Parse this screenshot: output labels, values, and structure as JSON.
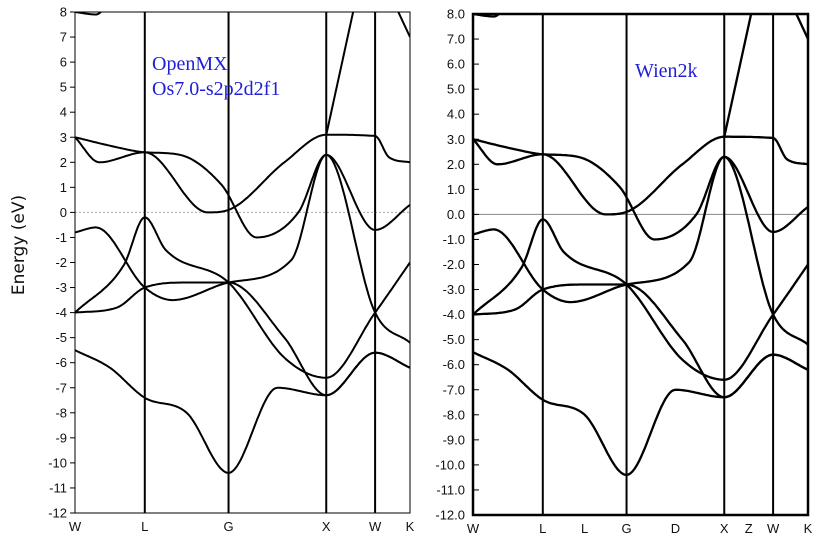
{
  "figure": {
    "ylabel": "Energy (eV)"
  },
  "chart_data": [
    {
      "type": "line",
      "title": "",
      "annotation": [
        "OpenMX",
        "Os7.0-s2p2d2f1"
      ],
      "ylabel": "Energy (eV)",
      "ylim": [
        -12,
        8
      ],
      "yticks": [
        8,
        7,
        6,
        5,
        4,
        3,
        2,
        1,
        0,
        -1,
        -2,
        -3,
        -4,
        -5,
        -6,
        -7,
        -8,
        -9,
        -10,
        -11,
        -12
      ],
      "ytick_labels": [
        "8",
        "7",
        "6",
        "5",
        "4",
        "3",
        "2",
        "1",
        "0",
        "-1",
        "-2",
        "-3",
        "-4",
        "-5",
        "-6",
        "-7",
        "-8",
        "-9",
        "-10",
        "-11",
        "-12"
      ],
      "k_labels": [
        "W",
        "L",
        "G",
        "X",
        "W",
        "K"
      ],
      "k_positions": [
        0,
        1,
        2.2,
        3.6,
        4.3,
        4.8
      ],
      "fermi_level": 0,
      "fermi_style": "dotted",
      "series": [
        {
          "points": [
            [
              0,
              3
            ],
            [
              0.35,
              2
            ],
            [
              1,
              2.4
            ],
            [
              1.9,
              0
            ],
            [
              2.2,
              0.1
            ],
            [
              3,
              2
            ],
            [
              3.6,
              3.1
            ],
            [
              4.3,
              3.05
            ],
            [
              4.5,
              2.2
            ],
            [
              4.8,
              2
            ]
          ]
        },
        {
          "points": [
            [
              0,
              3
            ],
            [
              0.6,
              2.6
            ],
            [
              1,
              2.4
            ],
            [
              1.5,
              2.3
            ],
            [
              2.1,
              1.1
            ],
            [
              2.6,
              -1
            ],
            [
              3.2,
              0
            ],
            [
              3.6,
              2.3
            ],
            [
              4.3,
              -0.7
            ],
            [
              4.8,
              0.3
            ]
          ]
        },
        {
          "points": [
            [
              0,
              -0.8
            ],
            [
              0.3,
              -0.6
            ],
            [
              1,
              -3
            ],
            [
              1.4,
              -3.5
            ],
            [
              2.2,
              -2.8
            ],
            [
              3.1,
              -1.9
            ],
            [
              3.6,
              2.3
            ],
            [
              4.3,
              -4
            ],
            [
              4.8,
              -5.2
            ]
          ]
        },
        {
          "points": [
            [
              0,
              -4
            ],
            [
              0.7,
              -2.1
            ],
            [
              1,
              -0.2
            ],
            [
              1.3,
              -1.5
            ],
            [
              2.2,
              -2.8
            ],
            [
              3,
              -5.8
            ],
            [
              3.6,
              -6.6
            ],
            [
              4.3,
              -4
            ],
            [
              4.8,
              -2
            ]
          ]
        },
        {
          "points": [
            [
              0,
              -4
            ],
            [
              0.6,
              -3.8
            ],
            [
              1,
              -3
            ],
            [
              1.6,
              -2.8
            ],
            [
              2.2,
              -2.8
            ],
            [
              3,
              -5
            ],
            [
              3.6,
              -7.3
            ],
            [
              4.3,
              -5.6
            ],
            [
              4.8,
              -6.2
            ]
          ]
        },
        {
          "points": [
            [
              0,
              -5.5
            ],
            [
              0.5,
              -6.2
            ],
            [
              1,
              -7.4
            ],
            [
              1.6,
              -8
            ],
            [
              2.2,
              -10.4
            ],
            [
              2.9,
              -7
            ],
            [
              3.6,
              -7.3
            ],
            [
              4.3,
              -5.6
            ],
            [
              4.8,
              -6.2
            ]
          ]
        },
        {
          "points": [
            [
              0,
              8
            ],
            [
              0.3,
              7.9
            ],
            [
              0.45,
              8.2
            ]
          ]
        },
        {
          "points": [
            [
              3.6,
              3.1
            ],
            [
              4.0,
              8.2
            ]
          ]
        },
        {
          "points": [
            [
              4.6,
              8.2
            ],
            [
              4.8,
              7
            ]
          ]
        }
      ]
    },
    {
      "type": "line",
      "title": "",
      "annotation": [
        "Wien2k"
      ],
      "ylim": [
        -12,
        8
      ],
      "yticks": [
        8,
        7,
        6,
        5,
        4,
        3,
        2,
        1,
        0,
        -1,
        -2,
        -3,
        -4,
        -5,
        -6,
        -7,
        -8,
        -9,
        -10,
        -11,
        -12
      ],
      "ytick_labels": [
        "8.0",
        "7.0",
        "6.0",
        "5.0",
        "4.0",
        "3.0",
        "2.0",
        "1.0",
        "0.0",
        "-1.0",
        "-2.0",
        "-3.0",
        "-4.0",
        "-5.0",
        "-6.0",
        "-7.0",
        "-8.0",
        "-9.0",
        "-10.0",
        "-11.0",
        "-12.0"
      ],
      "k_labels": [
        "W",
        "L",
        "L",
        "G",
        "D",
        "X",
        "Z",
        "W",
        "K"
      ],
      "k_positions": [
        0,
        1,
        1.6,
        2.2,
        2.9,
        3.6,
        3.95,
        4.3,
        4.8
      ],
      "vlines_at": [
        1,
        2.2,
        3.6,
        4.3
      ],
      "fermi_level": 0,
      "fermi_style": "solid",
      "series": [
        {
          "points": [
            [
              0,
              3
            ],
            [
              0.35,
              2
            ],
            [
              1,
              2.4
            ],
            [
              1.9,
              0
            ],
            [
              2.2,
              0.1
            ],
            [
              3,
              2
            ],
            [
              3.6,
              3.1
            ],
            [
              4.3,
              3.05
            ],
            [
              4.5,
              2.2
            ],
            [
              4.8,
              2
            ]
          ]
        },
        {
          "points": [
            [
              0,
              3
            ],
            [
              0.6,
              2.6
            ],
            [
              1,
              2.4
            ],
            [
              1.5,
              2.3
            ],
            [
              2.1,
              1.1
            ],
            [
              2.6,
              -1
            ],
            [
              3.2,
              0
            ],
            [
              3.6,
              2.3
            ],
            [
              4.3,
              -0.7
            ],
            [
              4.8,
              0.3
            ]
          ]
        },
        {
          "points": [
            [
              0,
              -0.8
            ],
            [
              0.3,
              -0.6
            ],
            [
              1,
              -3
            ],
            [
              1.4,
              -3.5
            ],
            [
              2.2,
              -2.8
            ],
            [
              3.1,
              -1.9
            ],
            [
              3.6,
              2.3
            ],
            [
              4.3,
              -4
            ],
            [
              4.8,
              -5.2
            ]
          ]
        },
        {
          "points": [
            [
              0,
              -4
            ],
            [
              0.7,
              -2.1
            ],
            [
              1,
              -0.2
            ],
            [
              1.3,
              -1.5
            ],
            [
              2.2,
              -2.8
            ],
            [
              3,
              -5.8
            ],
            [
              3.6,
              -6.6
            ],
            [
              4.3,
              -4
            ],
            [
              4.8,
              -2
            ]
          ]
        },
        {
          "points": [
            [
              0,
              -4
            ],
            [
              0.6,
              -3.8
            ],
            [
              1,
              -3
            ],
            [
              1.6,
              -2.8
            ],
            [
              2.2,
              -2.8
            ],
            [
              3,
              -5
            ],
            [
              3.6,
              -7.3
            ],
            [
              4.3,
              -5.6
            ],
            [
              4.8,
              -6.2
            ]
          ]
        },
        {
          "points": [
            [
              0,
              -5.5
            ],
            [
              0.5,
              -6.2
            ],
            [
              1,
              -7.4
            ],
            [
              1.6,
              -8
            ],
            [
              2.2,
              -10.4
            ],
            [
              2.9,
              -7
            ],
            [
              3.6,
              -7.3
            ],
            [
              4.3,
              -5.6
            ],
            [
              4.8,
              -6.2
            ]
          ]
        },
        {
          "points": [
            [
              0,
              8
            ],
            [
              0.3,
              7.9
            ],
            [
              0.45,
              8.2
            ]
          ]
        },
        {
          "points": [
            [
              3.6,
              3.1
            ],
            [
              4.0,
              8.2
            ]
          ]
        },
        {
          "points": [
            [
              4.6,
              8.2
            ],
            [
              4.8,
              7
            ]
          ]
        }
      ]
    }
  ]
}
